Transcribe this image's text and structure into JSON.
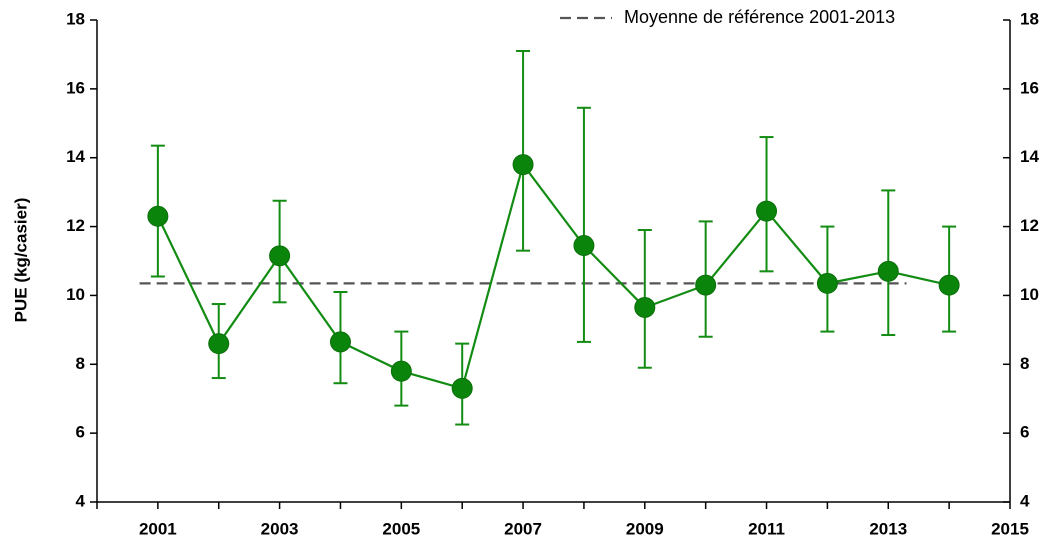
{
  "chart_data": {
    "type": "line",
    "ylabel": "PUE (kg/casier)",
    "x": [
      2001,
      2002,
      2003,
      2004,
      2005,
      2006,
      2007,
      2008,
      2009,
      2010,
      2011,
      2012,
      2013,
      2014
    ],
    "series": [
      {
        "name": "PUE",
        "color": "#128c12",
        "values": [
          12.3,
          8.6,
          11.15,
          8.65,
          7.8,
          7.3,
          13.8,
          11.45,
          9.65,
          10.3,
          12.45,
          10.35,
          10.7,
          10.3
        ],
        "err_up": [
          2.05,
          1.15,
          1.6,
          1.45,
          1.15,
          1.3,
          3.3,
          4.0,
          2.25,
          1.85,
          2.15,
          1.65,
          2.35,
          1.7
        ],
        "err_down": [
          1.75,
          1.0,
          1.35,
          1.2,
          1.0,
          1.05,
          2.5,
          2.8,
          1.75,
          1.5,
          1.75,
          1.4,
          1.85,
          1.35
        ]
      }
    ],
    "reference": {
      "name": "Moyenne de référence 2001-2013",
      "value": 10.35,
      "x": [
        2000.7,
        2013.3
      ],
      "color": "#555555"
    },
    "xlim": [
      2000,
      2015
    ],
    "xticks": [
      2001,
      2003,
      2005,
      2007,
      2009,
      2011,
      2013,
      2015
    ],
    "xminor_ticks": [
      2000,
      2002,
      2004,
      2006,
      2008,
      2010,
      2012,
      2014
    ],
    "ylim": [
      4,
      18
    ],
    "yticks": [
      4,
      6,
      8,
      10,
      12,
      14,
      16,
      18
    ],
    "y2lim": [
      4,
      18
    ],
    "y2ticks": [
      4,
      6,
      8,
      10,
      12,
      14,
      16,
      18
    ],
    "legend": "top-right"
  }
}
